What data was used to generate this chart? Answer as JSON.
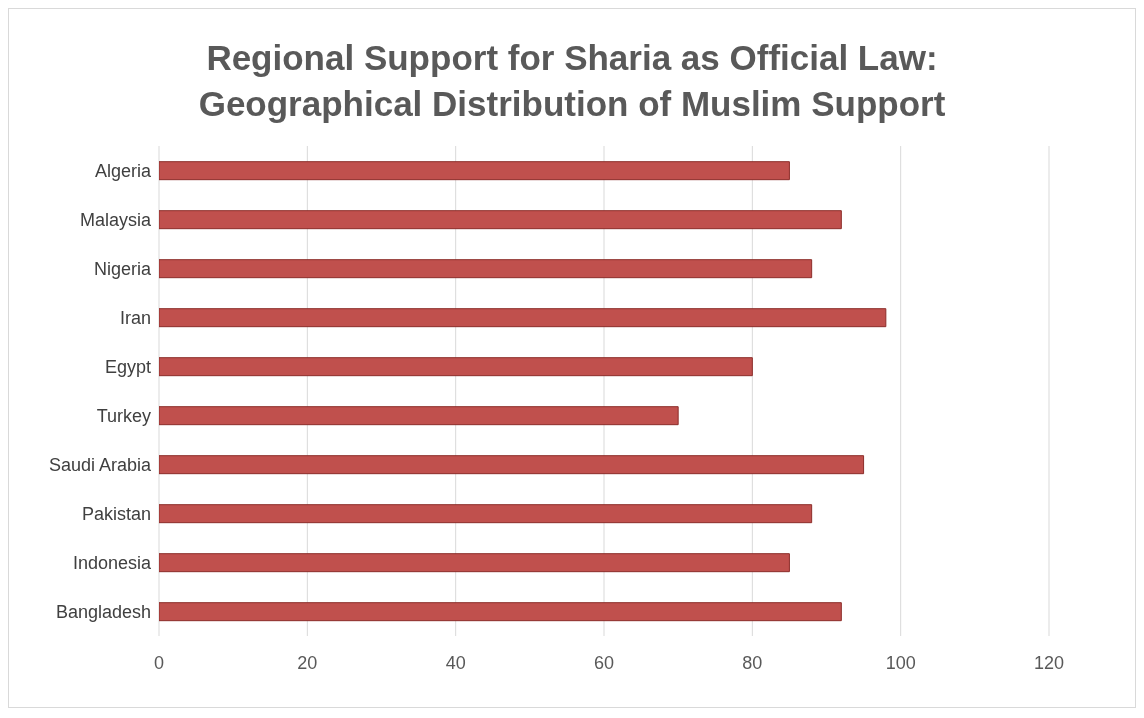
{
  "chart_data": {
    "type": "bar",
    "orientation": "horizontal",
    "title": "Regional Support for Sharia as Official Law: Geographical Distribution of Muslim Support",
    "categories": [
      "Algeria",
      "Malaysia",
      "Nigeria",
      "Iran",
      "Egypt",
      "Turkey",
      "Saudi Arabia",
      "Pakistan",
      "Indonesia",
      "Bangladesh"
    ],
    "values": [
      85,
      92,
      88,
      98,
      80,
      70,
      95,
      88,
      85,
      92
    ],
    "color": "#c0504d",
    "xlim": [
      0,
      120
    ],
    "xticks": [
      0,
      20,
      40,
      60,
      80,
      100,
      120
    ],
    "grid": "x"
  }
}
